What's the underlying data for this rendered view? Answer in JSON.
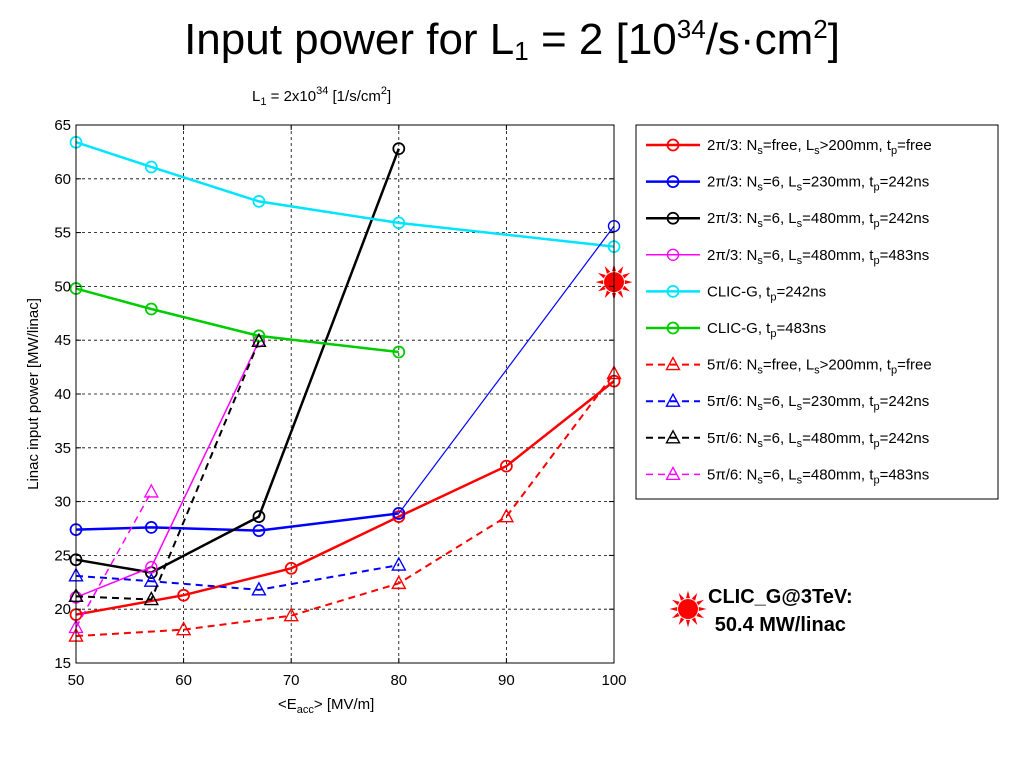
{
  "slide": {
    "title": {
      "prefix": "Input power for L",
      "sub": "1",
      "middle": " = 2 [10",
      "sup1": "34",
      "unit": "/s·cm",
      "sup2": "2",
      "suffix": "]"
    }
  },
  "callout": {
    "line1": "CLIC_G@3TeV:",
    "line2": "50.4 MW/linac",
    "marker_color": "#ff0000"
  },
  "chart_data": {
    "type": "line",
    "title": {
      "prefix": "L",
      "sub": "1",
      "middle": " = 2x10",
      "sup": "34",
      "suffix": " [1/s/cm",
      "sup2": "2",
      "end": "]"
    },
    "xlabel": {
      "prefix": "<E",
      "sub": "acc",
      "suffix": "> [MV/m]"
    },
    "ylabel": "Linac input power [MW/linac]",
    "xlim": [
      50,
      100
    ],
    "ylim": [
      15,
      65
    ],
    "xticks": [
      50,
      60,
      70,
      80,
      90,
      100
    ],
    "yticks": [
      15,
      20,
      25,
      30,
      35,
      40,
      45,
      50,
      55,
      60,
      65
    ],
    "grid": true,
    "legend_position": "right",
    "series": [
      {
        "legend": [
          [
            "2π/3: N",
            ""
          ],
          [
            "s",
            "sub"
          ],
          [
            "=free, L",
            ""
          ],
          [
            "s",
            "sub"
          ],
          [
            ">200mm, t",
            ""
          ],
          [
            "p",
            "sub"
          ],
          [
            "=free",
            ""
          ]
        ],
        "color": "#ff0000",
        "dash": false,
        "marker": "circle",
        "width": 2.5,
        "x": [
          50,
          60,
          70,
          80,
          90,
          100
        ],
        "y": [
          19.5,
          21.3,
          23.8,
          28.6,
          33.3,
          41.2
        ]
      },
      {
        "legend": [
          [
            "2π/3: N",
            ""
          ],
          [
            "s",
            "sub"
          ],
          [
            "=6, L",
            ""
          ],
          [
            "s",
            "sub"
          ],
          [
            "=230mm, t",
            ""
          ],
          [
            "p",
            "sub"
          ],
          [
            "=242ns",
            ""
          ]
        ],
        "color": "#0000ff",
        "dash": false,
        "marker": "circle",
        "width": 2.5,
        "x": [
          50,
          57,
          67,
          80
        ],
        "y": [
          27.4,
          27.6,
          27.3,
          28.9
        ]
      },
      {
        "legend": [
          [
            "2π/3: N",
            ""
          ],
          [
            "s",
            "sub"
          ],
          [
            "=6, L",
            ""
          ],
          [
            "s",
            "sub"
          ],
          [
            "=480mm, t",
            ""
          ],
          [
            "p",
            "sub"
          ],
          [
            "=242ns",
            ""
          ]
        ],
        "color": "#000000",
        "dash": false,
        "marker": "circle",
        "width": 2.5,
        "x": [
          50,
          57,
          67,
          80
        ],
        "y": [
          24.6,
          23.4,
          28.6,
          62.8
        ]
      },
      {
        "legend": [
          [
            "2π/3: N",
            ""
          ],
          [
            "s",
            "sub"
          ],
          [
            "=6, L",
            ""
          ],
          [
            "s",
            "sub"
          ],
          [
            "=480mm, t",
            ""
          ],
          [
            "p",
            "sub"
          ],
          [
            "=483ns",
            ""
          ]
        ],
        "color": "#ff00ff",
        "dash": false,
        "marker": "circle",
        "width": 1.5,
        "x": [
          50,
          57,
          67
        ],
        "y": [
          21.1,
          23.9,
          44.9
        ]
      },
      {
        "legend": [
          [
            "CLIC-G, t",
            ""
          ],
          [
            "p",
            "sub"
          ],
          [
            "=242ns",
            ""
          ]
        ],
        "color": "#00e5ff",
        "dash": false,
        "marker": "circle",
        "width": 2.5,
        "x": [
          50,
          57,
          67,
          80,
          100
        ],
        "y": [
          63.4,
          61.1,
          57.9,
          55.9,
          53.7
        ]
      },
      {
        "legend": [
          [
            "CLIC-G, t",
            ""
          ],
          [
            "p",
            "sub"
          ],
          [
            "=483ns",
            ""
          ]
        ],
        "color": "#00cc00",
        "dash": false,
        "marker": "circle",
        "width": 2.5,
        "x": [
          50,
          57,
          67,
          80
        ],
        "y": [
          49.8,
          47.9,
          45.4,
          43.9
        ]
      },
      {
        "legend": [
          [
            "5π/6: N",
            ""
          ],
          [
            "s",
            "sub"
          ],
          [
            "=free, L",
            ""
          ],
          [
            "s",
            "sub"
          ],
          [
            ">200mm, t",
            ""
          ],
          [
            "p",
            "sub"
          ],
          [
            "=free",
            ""
          ]
        ],
        "color": "#ff0000",
        "dash": true,
        "marker": "triangle",
        "width": 2,
        "x": [
          50,
          60,
          70,
          80,
          90,
          100
        ],
        "y": [
          17.5,
          18.1,
          19.4,
          22.4,
          28.6,
          41.9
        ]
      },
      {
        "legend": [
          [
            "5π/6: N",
            ""
          ],
          [
            "s",
            "sub"
          ],
          [
            "=6, L",
            ""
          ],
          [
            "s",
            "sub"
          ],
          [
            "=230mm, t",
            ""
          ],
          [
            "p",
            "sub"
          ],
          [
            "=242ns",
            ""
          ]
        ],
        "color": "#0000ff",
        "dash": true,
        "marker": "triangle",
        "width": 2,
        "x": [
          50,
          57,
          67,
          80
        ],
        "y": [
          23.1,
          22.6,
          21.8,
          24.1
        ]
      },
      {
        "legend": [
          [
            "5π/6: N",
            ""
          ],
          [
            "s",
            "sub"
          ],
          [
            "=6, L",
            ""
          ],
          [
            "s",
            "sub"
          ],
          [
            "=480mm, t",
            ""
          ],
          [
            "p",
            "sub"
          ],
          [
            "=242ns",
            ""
          ]
        ],
        "color": "#000000",
        "dash": true,
        "marker": "triangle",
        "width": 2,
        "x": [
          50,
          57,
          67
        ],
        "y": [
          21.2,
          20.9,
          44.9
        ]
      },
      {
        "legend": [
          [
            "5π/6: N",
            ""
          ],
          [
            "s",
            "sub"
          ],
          [
            "=6, L",
            ""
          ],
          [
            "s",
            "sub"
          ],
          [
            "=480mm, t",
            ""
          ],
          [
            "p",
            "sub"
          ],
          [
            "=483ns",
            ""
          ]
        ],
        "color": "#ff00ff",
        "dash": true,
        "marker": "triangle",
        "width": 1.5,
        "x": [
          50,
          57
        ],
        "y": [
          18.3,
          30.9
        ]
      },
      {
        "legend": null,
        "color": "#0000ff",
        "dash": false,
        "marker": "circle",
        "width": 1.2,
        "x": [
          80,
          100
        ],
        "y": [
          28.9,
          55.6
        ]
      }
    ],
    "highlight_point": {
      "x": 100,
      "y": 50.4,
      "color": "#ff0000"
    }
  }
}
